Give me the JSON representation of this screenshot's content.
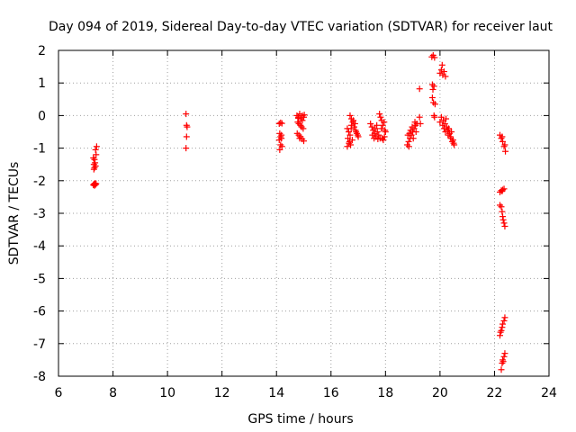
{
  "chart_data": {
    "type": "scatter",
    "title": "Day 094 of 2019, Sidereal Day-to-day VTEC variation (SDTVAR) for receiver laut",
    "xlabel": "GPS time / hours",
    "ylabel": "SDTVAR / TECUs",
    "xlim": [
      6,
      24
    ],
    "ylim": [
      -8,
      2
    ],
    "xticks": [
      6,
      8,
      10,
      12,
      14,
      16,
      18,
      20,
      22,
      24
    ],
    "yticks": [
      2,
      1,
      0,
      -1,
      -2,
      -3,
      -4,
      -5,
      -6,
      -7,
      -8
    ],
    "grid": true,
    "marker": "+",
    "series_color": "#ff0000",
    "series": [
      {
        "name": "SDTVAR",
        "points": [
          [
            7.3,
            -2.1
          ],
          [
            7.32,
            -2.15
          ],
          [
            7.34,
            -2.08
          ],
          [
            7.36,
            -2.12
          ],
          [
            7.28,
            -2.13
          ],
          [
            7.38,
            -2.09
          ],
          [
            7.28,
            -1.3
          ],
          [
            7.3,
            -1.5
          ],
          [
            7.32,
            -1.6
          ],
          [
            7.34,
            -1.45
          ],
          [
            7.36,
            -1.55
          ],
          [
            7.38,
            -1.2
          ],
          [
            7.4,
            -0.95
          ],
          [
            7.36,
            -1.05
          ],
          [
            7.32,
            -1.35
          ],
          [
            7.3,
            -1.65
          ],
          [
            10.68,
            0.05
          ],
          [
            10.7,
            -0.3
          ],
          [
            10.72,
            -0.35
          ],
          [
            10.7,
            -0.65
          ],
          [
            10.68,
            -1.0
          ],
          [
            14.1,
            -0.25
          ],
          [
            14.15,
            -0.22
          ],
          [
            14.2,
            -0.24
          ],
          [
            14.12,
            -0.55
          ],
          [
            14.15,
            -0.65
          ],
          [
            14.18,
            -0.7
          ],
          [
            14.1,
            -0.75
          ],
          [
            14.15,
            -0.9
          ],
          [
            14.2,
            -0.95
          ],
          [
            14.12,
            -1.05
          ],
          [
            14.18,
            -0.6
          ],
          [
            14.75,
            0.0
          ],
          [
            14.8,
            -0.05
          ],
          [
            14.85,
            0.05
          ],
          [
            14.9,
            -0.1
          ],
          [
            14.95,
            -0.15
          ],
          [
            15.0,
            -0.05
          ],
          [
            14.78,
            -0.2
          ],
          [
            14.82,
            -0.25
          ],
          [
            14.88,
            -0.3
          ],
          [
            14.92,
            -0.35
          ],
          [
            14.98,
            -0.4
          ],
          [
            15.02,
            0.02
          ],
          [
            14.76,
            -0.55
          ],
          [
            14.82,
            -0.6
          ],
          [
            14.88,
            -0.65
          ],
          [
            14.94,
            -0.72
          ],
          [
            15.0,
            -0.78
          ],
          [
            14.85,
            -0.7
          ],
          [
            14.8,
            -0.08
          ],
          [
            14.95,
            0.0
          ],
          [
            16.6,
            -0.4
          ],
          [
            16.65,
            -0.5
          ],
          [
            16.7,
            -0.6
          ],
          [
            16.62,
            -0.7
          ],
          [
            16.68,
            -0.8
          ],
          [
            16.72,
            -0.9
          ],
          [
            16.6,
            -0.95
          ],
          [
            16.75,
            -0.3
          ],
          [
            16.8,
            -0.2
          ],
          [
            16.85,
            -0.35
          ],
          [
            16.9,
            -0.45
          ],
          [
            16.95,
            -0.55
          ],
          [
            17.0,
            -0.65
          ],
          [
            16.78,
            -0.75
          ],
          [
            16.7,
            0.0
          ],
          [
            16.75,
            -0.1
          ],
          [
            16.82,
            -0.15
          ],
          [
            16.88,
            -0.25
          ],
          [
            16.92,
            -0.5
          ],
          [
            16.98,
            -0.6
          ],
          [
            16.66,
            -0.85
          ],
          [
            16.74,
            -0.4
          ],
          [
            17.45,
            -0.25
          ],
          [
            17.5,
            -0.35
          ],
          [
            17.55,
            -0.45
          ],
          [
            17.6,
            -0.55
          ],
          [
            17.65,
            -0.65
          ],
          [
            17.7,
            -0.5
          ],
          [
            17.75,
            -0.6
          ],
          [
            17.8,
            -0.7
          ],
          [
            17.85,
            -0.4
          ],
          [
            17.9,
            -0.3
          ],
          [
            17.95,
            -0.2
          ],
          [
            18.0,
            -0.5
          ],
          [
            17.78,
            0.05
          ],
          [
            17.82,
            -0.05
          ],
          [
            17.86,
            -0.15
          ],
          [
            17.88,
            -0.7
          ],
          [
            17.92,
            -0.75
          ],
          [
            17.96,
            -0.65
          ],
          [
            17.52,
            -0.6
          ],
          [
            17.58,
            -0.7
          ],
          [
            17.62,
            -0.4
          ],
          [
            17.68,
            -0.3
          ],
          [
            17.72,
            -0.72
          ],
          [
            17.98,
            -0.45
          ],
          [
            18.8,
            -0.9
          ],
          [
            18.85,
            -0.8
          ],
          [
            18.9,
            -0.7
          ],
          [
            18.95,
            -0.6
          ],
          [
            19.0,
            -0.5
          ],
          [
            19.05,
            -0.4
          ],
          [
            19.1,
            -0.3
          ],
          [
            19.15,
            -0.25
          ],
          [
            18.82,
            -0.6
          ],
          [
            18.88,
            -0.55
          ],
          [
            18.92,
            -0.45
          ],
          [
            18.98,
            -0.35
          ],
          [
            19.02,
            -0.7
          ],
          [
            19.08,
            -0.2
          ],
          [
            19.12,
            -0.5
          ],
          [
            18.86,
            -0.95
          ],
          [
            19.25,
            0.82
          ],
          [
            19.25,
            -0.05
          ],
          [
            19.28,
            -0.25
          ],
          [
            19.7,
            1.8
          ],
          [
            19.75,
            1.85
          ],
          [
            19.8,
            1.78
          ],
          [
            19.72,
            0.95
          ],
          [
            19.78,
            0.9
          ],
          [
            19.74,
            0.8
          ],
          [
            19.76,
            0.4
          ],
          [
            19.82,
            0.35
          ],
          [
            19.8,
            -0.05
          ],
          [
            19.78,
            0.0
          ],
          [
            19.72,
            0.55
          ],
          [
            20.0,
            1.3
          ],
          [
            20.05,
            1.4
          ],
          [
            20.1,
            1.25
          ],
          [
            20.15,
            1.35
          ],
          [
            20.2,
            1.2
          ],
          [
            20.08,
            1.55
          ],
          [
            20.0,
            -0.2
          ],
          [
            20.05,
            -0.05
          ],
          [
            20.1,
            -0.3
          ],
          [
            20.15,
            -0.4
          ],
          [
            20.2,
            -0.5
          ],
          [
            20.25,
            -0.35
          ],
          [
            20.3,
            -0.6
          ],
          [
            20.35,
            -0.55
          ],
          [
            20.4,
            -0.7
          ],
          [
            20.45,
            -0.8
          ],
          [
            20.5,
            -0.85
          ],
          [
            20.12,
            -0.15
          ],
          [
            20.18,
            -0.25
          ],
          [
            20.28,
            -0.45
          ],
          [
            20.38,
            -0.65
          ],
          [
            20.48,
            -0.75
          ],
          [
            20.42,
            -0.5
          ],
          [
            20.22,
            -0.1
          ],
          [
            20.32,
            -0.4
          ],
          [
            20.52,
            -0.9
          ],
          [
            22.2,
            -0.6
          ],
          [
            22.25,
            -0.7
          ],
          [
            22.3,
            -0.8
          ],
          [
            22.35,
            -0.95
          ],
          [
            22.4,
            -1.1
          ],
          [
            22.28,
            -0.65
          ],
          [
            22.38,
            -0.9
          ],
          [
            22.2,
            -2.35
          ],
          [
            22.25,
            -2.3
          ],
          [
            22.3,
            -2.28
          ],
          [
            22.35,
            -2.25
          ],
          [
            22.28,
            -2.32
          ],
          [
            22.2,
            -2.75
          ],
          [
            22.25,
            -2.8
          ],
          [
            22.28,
            -2.95
          ],
          [
            22.3,
            -3.1
          ],
          [
            22.32,
            -3.2
          ],
          [
            22.35,
            -3.3
          ],
          [
            22.38,
            -3.4
          ],
          [
            22.2,
            -6.75
          ],
          [
            22.25,
            -6.6
          ],
          [
            22.28,
            -6.5
          ],
          [
            22.3,
            -6.4
          ],
          [
            22.35,
            -6.3
          ],
          [
            22.38,
            -6.2
          ],
          [
            22.22,
            -6.65
          ],
          [
            22.25,
            -7.8
          ],
          [
            22.28,
            -7.6
          ],
          [
            22.3,
            -7.5
          ],
          [
            22.35,
            -7.4
          ],
          [
            22.38,
            -7.3
          ],
          [
            22.32,
            -7.55
          ]
        ]
      }
    ]
  }
}
